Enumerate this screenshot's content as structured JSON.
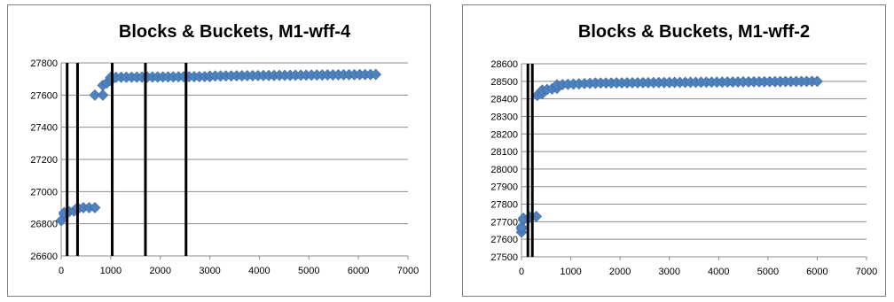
{
  "chart_data": [
    {
      "type": "scatter",
      "title": "Blocks & Buckets, M1-wff-4",
      "xlabel": "",
      "ylabel": "",
      "xlim": [
        0,
        7000
      ],
      "ylim": [
        26600,
        27800
      ],
      "xticks": [
        "0",
        "1000",
        "2000",
        "3000",
        "4000",
        "5000",
        "6000",
        "7000"
      ],
      "yticks": [
        "26600",
        "26800",
        "27000",
        "27200",
        "27400",
        "27600",
        "27800"
      ],
      "grid": "horizontal",
      "legend": "none",
      "marker_color": "#4f81bd",
      "vertical_lines_x": [
        120,
        330,
        1030,
        1700,
        2520
      ],
      "segments": [
        {
          "x": [
            0,
            60
          ],
          "y": [
            26820,
            26860
          ]
        },
        {
          "x": [
            60,
            260
          ],
          "y": [
            26870,
            26880
          ]
        },
        {
          "x": [
            260,
            330
          ],
          "y": [
            26880,
            26890
          ]
        },
        {
          "x": [
            330,
            680
          ],
          "y": [
            26900,
            26900
          ]
        },
        {
          "x": [
            680,
            840
          ],
          "y": [
            27600,
            27600
          ]
        },
        {
          "x": [
            840,
            1000
          ],
          "y": [
            27660,
            27690
          ]
        },
        {
          "x": [
            1000,
            3000
          ],
          "y": [
            27710,
            27715
          ]
        },
        {
          "x": [
            3000,
            6350
          ],
          "y": [
            27718,
            27728
          ]
        }
      ]
    },
    {
      "type": "scatter",
      "title": "Blocks & Buckets, M1-wff-2",
      "xlabel": "",
      "ylabel": "",
      "xlim": [
        0,
        7000
      ],
      "ylim": [
        27500,
        28600
      ],
      "xticks": [
        "0",
        "1000",
        "2000",
        "3000",
        "4000",
        "5000",
        "6000",
        "7000"
      ],
      "yticks": [
        "27500",
        "27600",
        "27700",
        "27800",
        "27900",
        "28000",
        "28100",
        "28200",
        "28300",
        "28400",
        "28500",
        "28600"
      ],
      "grid": "horizontal",
      "legend": "none",
      "marker_color": "#4f81bd",
      "vertical_lines_x": [
        130,
        220
      ],
      "segments": [
        {
          "x": [
            0,
            0
          ],
          "y": [
            27640,
            27660
          ]
        },
        {
          "x": [
            0,
            40
          ],
          "y": [
            27670,
            27710
          ]
        },
        {
          "x": [
            40,
            300
          ],
          "y": [
            27720,
            27730
          ]
        },
        {
          "x": [
            320,
            420
          ],
          "y": [
            28420,
            28430
          ]
        },
        {
          "x": [
            420,
            720
          ],
          "y": [
            28450,
            28460
          ]
        },
        {
          "x": [
            720,
            1500
          ],
          "y": [
            28480,
            28490
          ]
        },
        {
          "x": [
            1500,
            6000
          ],
          "y": [
            28490,
            28500
          ]
        }
      ]
    }
  ]
}
